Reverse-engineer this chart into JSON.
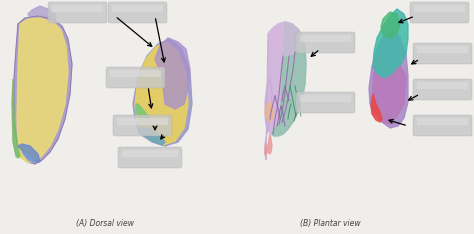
{
  "bg_color": "#f0eeeb",
  "title_left": "(A) Dorsal view",
  "title_right": "(B) Plantar view",
  "title_fontsize": 5.5,
  "title_color": "#444444",
  "fig_w": 4.74,
  "fig_h": 2.34,
  "dpi": 100
}
